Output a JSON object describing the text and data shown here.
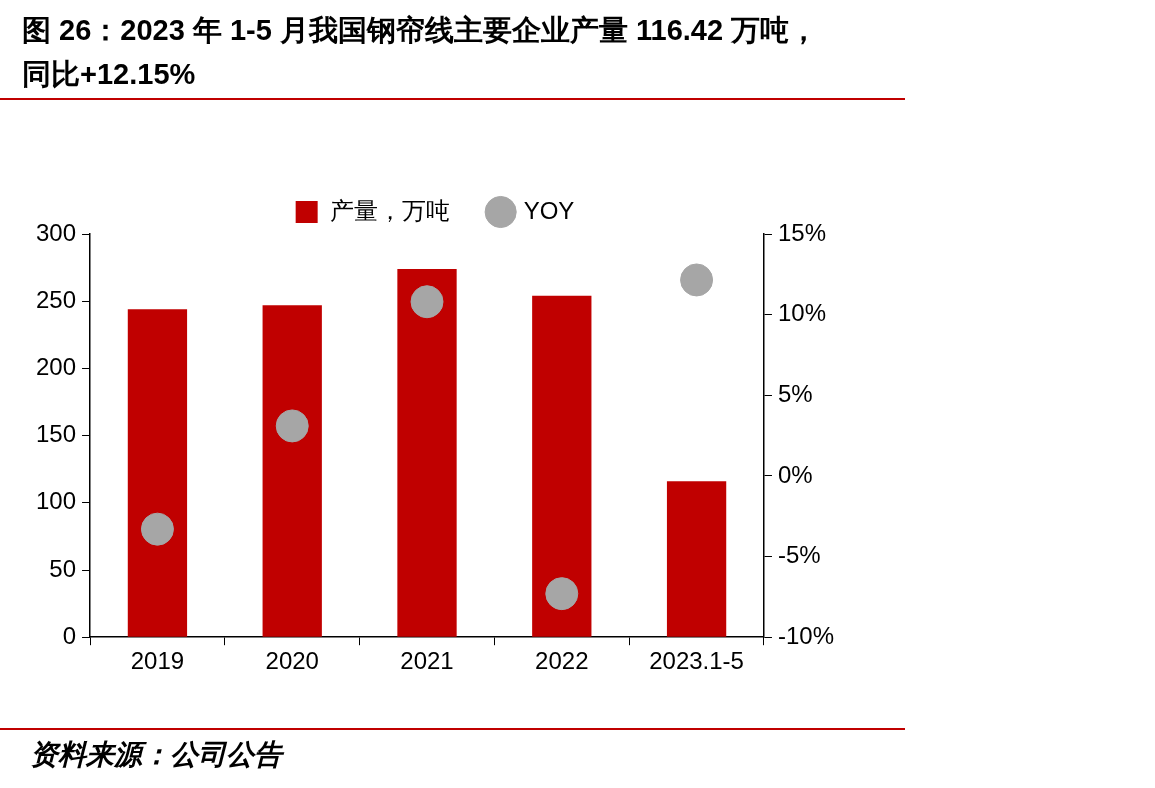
{
  "chart_data": {
    "type": "bar",
    "title": "图 26：2023 年 1-5 月我国钢帘线主要企业产量 116.42 万吨，同比+12.15%",
    "categories": [
      "2019",
      "2020",
      "2021",
      "2022",
      "2023.1-5"
    ],
    "series": [
      {
        "name": "产量，万吨",
        "type": "bar",
        "color": "#c00000",
        "values": [
          244,
          247,
          274,
          254,
          116
        ]
      },
      {
        "name": "YOY",
        "type": "scatter",
        "axis": "y2",
        "color": "#a6a6a6",
        "values": [
          -3.3,
          3.1,
          10.8,
          -7.3,
          12.15
        ]
      }
    ],
    "ylim": [
      0,
      300
    ],
    "yticks": [
      0,
      50,
      100,
      150,
      200,
      250,
      300
    ],
    "y2lim": [
      -10,
      15
    ],
    "y2ticks": [
      {
        "value": -10,
        "label": "-10%"
      },
      {
        "value": -5,
        "label": "-5%"
      },
      {
        "value": 0,
        "label": "0%"
      },
      {
        "value": 5,
        "label": "5%"
      },
      {
        "value": 10,
        "label": "10%"
      },
      {
        "value": 15,
        "label": "15%"
      }
    ],
    "legend": "top",
    "grid": false,
    "marker": "circle",
    "annotations": [
      "资料来源：公司公告"
    ]
  }
}
